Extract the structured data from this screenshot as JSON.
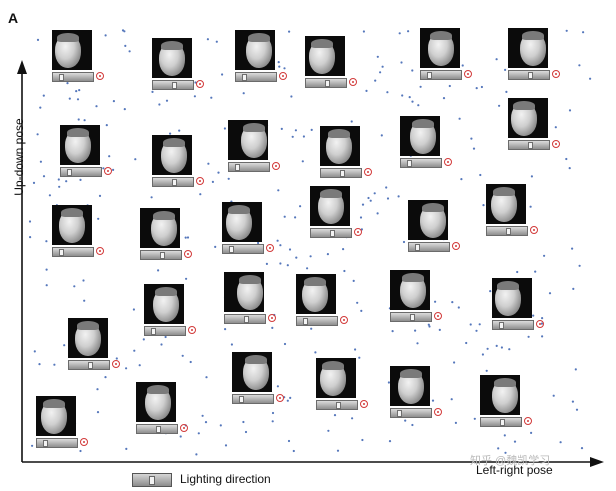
{
  "figure": {
    "panel_letter": "A",
    "y_axis_label": "Up-down pose",
    "x_axis_label": "Left-right pose",
    "legend_label": "Lighting direction",
    "watermark": "知乎 @魏凯学习"
  },
  "colors": {
    "axis": "#111111",
    "dot": "#5577bb",
    "ring": "#d23a3a",
    "face_background": "#0b0b0b"
  },
  "icons": {
    "legend": "lighting-slider-icon",
    "face": "face-thumbnail",
    "marker": "circle-marker-icon"
  }
}
